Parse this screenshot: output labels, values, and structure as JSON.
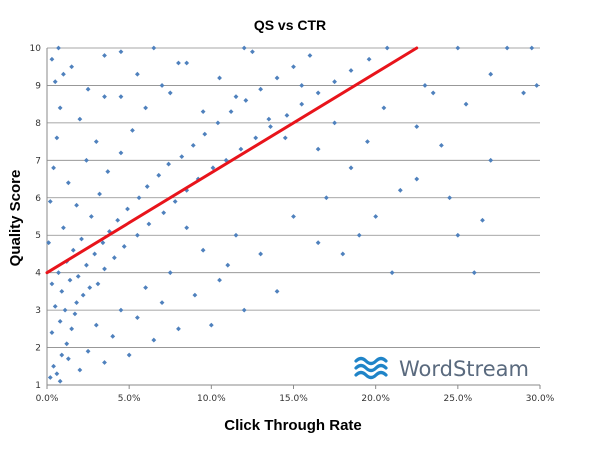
{
  "chart_data": {
    "type": "scatter",
    "title": "QS vs CTR",
    "xlabel": "Click Through Rate",
    "ylabel": "Quality Score",
    "xlim": [
      0,
      0.3
    ],
    "ylim": [
      1,
      10
    ],
    "x_ticks": [
      "0.0%",
      "5.0%",
      "10.0%",
      "15.0%",
      "20.0%",
      "25.0%",
      "30.0%"
    ],
    "y_ticks": [
      "1",
      "2",
      "3",
      "4",
      "5",
      "6",
      "7",
      "8",
      "9",
      "10"
    ],
    "grid": "horizontal",
    "series": [
      {
        "marker": "diamond",
        "color": "#4f81bd",
        "points": [
          [
            0.002,
            1.2
          ],
          [
            0.004,
            1.5
          ],
          [
            0.006,
            1.3
          ],
          [
            0.009,
            1.8
          ],
          [
            0.012,
            2.1
          ],
          [
            0.003,
            2.4
          ],
          [
            0.008,
            2.7
          ],
          [
            0.015,
            2.5
          ],
          [
            0.011,
            3.0
          ],
          [
            0.018,
            3.2
          ],
          [
            0.005,
            3.1
          ],
          [
            0.022,
            3.4
          ],
          [
            0.009,
            3.5
          ],
          [
            0.026,
            3.6
          ],
          [
            0.014,
            3.8
          ],
          [
            0.031,
            3.7
          ],
          [
            0.019,
            3.9
          ],
          [
            0.007,
            4.0
          ],
          [
            0.035,
            4.1
          ],
          [
            0.024,
            4.2
          ],
          [
            0.012,
            4.3
          ],
          [
            0.041,
            4.4
          ],
          [
            0.029,
            4.5
          ],
          [
            0.016,
            4.6
          ],
          [
            0.047,
            4.7
          ],
          [
            0.034,
            4.8
          ],
          [
            0.021,
            4.9
          ],
          [
            0.055,
            5.0
          ],
          [
            0.038,
            5.1
          ],
          [
            0.01,
            5.2
          ],
          [
            0.062,
            5.3
          ],
          [
            0.043,
            5.4
          ],
          [
            0.027,
            5.5
          ],
          [
            0.071,
            5.6
          ],
          [
            0.049,
            5.7
          ],
          [
            0.018,
            5.8
          ],
          [
            0.078,
            5.9
          ],
          [
            0.056,
            6.0
          ],
          [
            0.032,
            6.1
          ],
          [
            0.085,
            6.2
          ],
          [
            0.061,
            6.3
          ],
          [
            0.013,
            6.4
          ],
          [
            0.092,
            6.5
          ],
          [
            0.068,
            6.6
          ],
          [
            0.037,
            6.7
          ],
          [
            0.101,
            6.8
          ],
          [
            0.074,
            6.9
          ],
          [
            0.024,
            7.0
          ],
          [
            0.109,
            7.0
          ],
          [
            0.082,
            7.1
          ],
          [
            0.045,
            7.2
          ],
          [
            0.118,
            7.3
          ],
          [
            0.089,
            7.4
          ],
          [
            0.03,
            7.5
          ],
          [
            0.127,
            7.6
          ],
          [
            0.096,
            7.7
          ],
          [
            0.052,
            7.8
          ],
          [
            0.136,
            7.9
          ],
          [
            0.104,
            8.0
          ],
          [
            0.02,
            8.1
          ],
          [
            0.146,
            8.2
          ],
          [
            0.112,
            8.3
          ],
          [
            0.06,
            8.4
          ],
          [
            0.155,
            8.5
          ],
          [
            0.121,
            8.6
          ],
          [
            0.035,
            8.7
          ],
          [
            0.165,
            8.8
          ],
          [
            0.13,
            8.9
          ],
          [
            0.07,
            9.0
          ],
          [
            0.175,
            9.1
          ],
          [
            0.14,
            9.2
          ],
          [
            0.01,
            9.3
          ],
          [
            0.185,
            9.4
          ],
          [
            0.15,
            9.5
          ],
          [
            0.08,
            9.6
          ],
          [
            0.196,
            9.7
          ],
          [
            0.16,
            9.8
          ],
          [
            0.045,
            9.9
          ],
          [
            0.207,
            10.0
          ],
          [
            0.12,
            10.0
          ],
          [
            0.25,
            10.0
          ],
          [
            0.28,
            10.0
          ],
          [
            0.295,
            10.0
          ],
          [
            0.23,
            9.0
          ],
          [
            0.255,
            8.5
          ],
          [
            0.29,
            8.8
          ],
          [
            0.27,
            7.0
          ],
          [
            0.245,
            6.0
          ],
          [
            0.225,
            6.5
          ],
          [
            0.2,
            5.5
          ],
          [
            0.21,
            4.0
          ],
          [
            0.26,
            4.0
          ],
          [
            0.265,
            5.4
          ],
          [
            0.25,
            5.0
          ],
          [
            0.19,
            5.0
          ],
          [
            0.18,
            4.5
          ],
          [
            0.17,
            6.0
          ],
          [
            0.165,
            4.8
          ],
          [
            0.15,
            5.5
          ],
          [
            0.14,
            3.5
          ],
          [
            0.13,
            4.5
          ],
          [
            0.12,
            3.0
          ],
          [
            0.115,
            5.0
          ],
          [
            0.11,
            4.2
          ],
          [
            0.105,
            3.8
          ],
          [
            0.1,
            2.6
          ],
          [
            0.095,
            4.6
          ],
          [
            0.09,
            3.4
          ],
          [
            0.085,
            5.2
          ],
          [
            0.08,
            2.5
          ],
          [
            0.075,
            4.0
          ],
          [
            0.07,
            3.2
          ],
          [
            0.065,
            2.2
          ],
          [
            0.06,
            3.6
          ],
          [
            0.055,
            2.8
          ],
          [
            0.05,
            1.8
          ],
          [
            0.045,
            3.0
          ],
          [
            0.04,
            2.3
          ],
          [
            0.035,
            1.6
          ],
          [
            0.03,
            2.6
          ],
          [
            0.025,
            1.9
          ],
          [
            0.02,
            1.4
          ],
          [
            0.017,
            2.9
          ],
          [
            0.013,
            1.7
          ],
          [
            0.008,
            1.1
          ],
          [
            0.003,
            3.7
          ],
          [
            0.001,
            4.8
          ],
          [
            0.002,
            5.9
          ],
          [
            0.004,
            6.8
          ],
          [
            0.006,
            7.6
          ],
          [
            0.008,
            8.4
          ],
          [
            0.005,
            9.1
          ],
          [
            0.003,
            9.7
          ],
          [
            0.007,
            10.0
          ],
          [
            0.015,
            9.5
          ],
          [
            0.025,
            8.9
          ],
          [
            0.035,
            9.8
          ],
          [
            0.045,
            8.7
          ],
          [
            0.055,
            9.3
          ],
          [
            0.065,
            10.0
          ],
          [
            0.075,
            8.8
          ],
          [
            0.085,
            9.6
          ],
          [
            0.095,
            8.3
          ],
          [
            0.105,
            9.2
          ],
          [
            0.115,
            8.7
          ],
          [
            0.125,
            9.9
          ],
          [
            0.135,
            8.1
          ],
          [
            0.145,
            7.6
          ],
          [
            0.155,
            9.0
          ],
          [
            0.165,
            7.3
          ],
          [
            0.175,
            8.0
          ],
          [
            0.185,
            6.8
          ],
          [
            0.195,
            7.5
          ],
          [
            0.205,
            8.4
          ],
          [
            0.215,
            6.2
          ],
          [
            0.225,
            7.9
          ],
          [
            0.235,
            8.8
          ],
          [
            0.24,
            7.4
          ],
          [
            0.27,
            9.3
          ],
          [
            0.298,
            9.0
          ]
        ]
      }
    ],
    "trendline": {
      "color": "#e8141b",
      "x": [
        0.0,
        0.225
      ],
      "y": [
        4.0,
        10.0
      ]
    }
  },
  "logo": {
    "text": "WordStream"
  }
}
